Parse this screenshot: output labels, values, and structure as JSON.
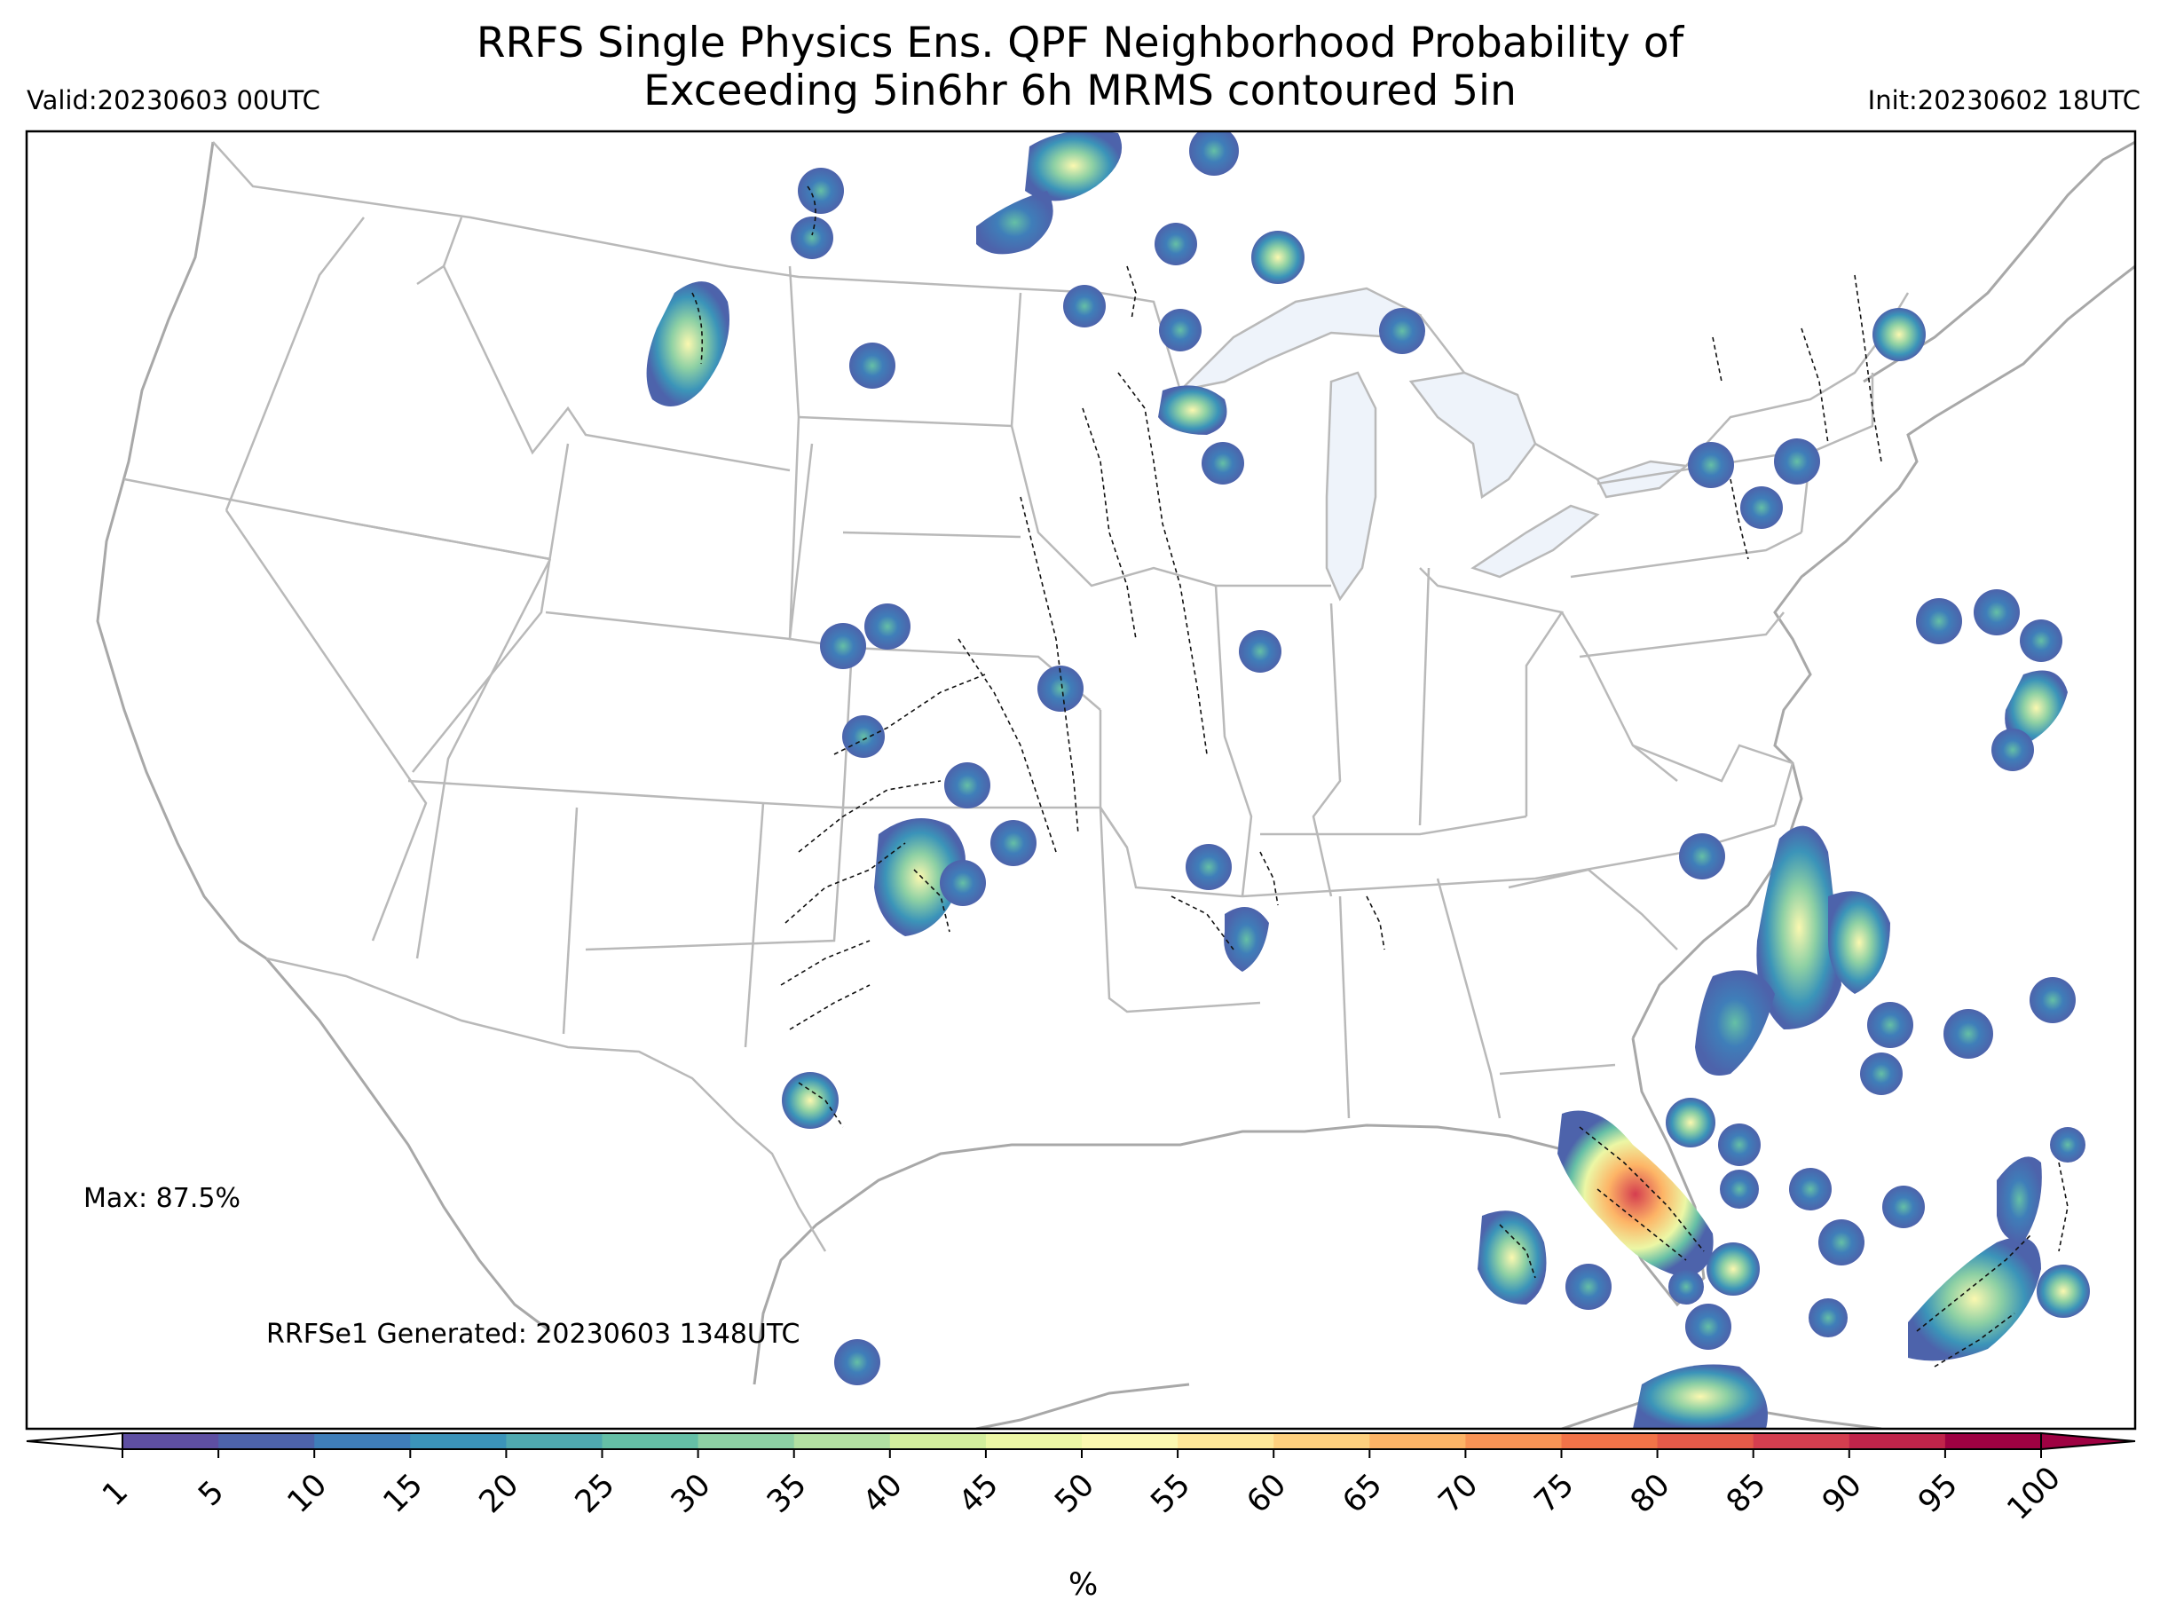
{
  "header": {
    "title_line1": "RRFS Single Physics Ens. QPF Neighborhood Probability of",
    "title_line2": "Exceeding 5in6hr 6h MRMS contoured 5in",
    "valid": "Valid:20230603 00UTC",
    "init": "Init:20230602 18UTC"
  },
  "annotations": {
    "max": "Max: 87.5%",
    "generated": "RRFSe1 Generated: 20230603 1348UTC"
  },
  "colorbar": {
    "unit": "%",
    "ticks": [
      "1",
      "5",
      "10",
      "15",
      "20",
      "25",
      "30",
      "35",
      "40",
      "45",
      "50",
      "55",
      "60",
      "65",
      "70",
      "75",
      "80",
      "85",
      "90",
      "95",
      "100"
    ],
    "colors": [
      "#5e4fa2",
      "#4d63ab",
      "#3f7eb9",
      "#3b94b9",
      "#4fa9b0",
      "#65bfa6",
      "#8dd0a4",
      "#b2e0a2",
      "#d3ee9d",
      "#ecf7a5",
      "#fbf8b0",
      "#fee798",
      "#fed07e",
      "#fdb466",
      "#f99455",
      "#f27348",
      "#e55a49",
      "#d53e4f",
      "#c0244a",
      "#9e0142"
    ],
    "under_color": "#ffffff",
    "over_color": "#9e0142"
  },
  "colors": {
    "state_lines": "#b9b9b9",
    "coast_lines": "#a8a8a8",
    "lakes": "#eef3fa",
    "mrms_contour": "#111111"
  }
}
